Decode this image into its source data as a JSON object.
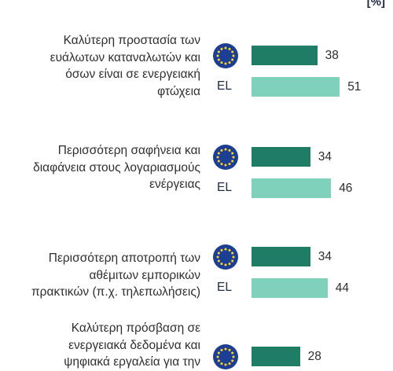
{
  "unit_label": "[%]",
  "colors": {
    "eu": "#1e7d64",
    "el": "#7fd1bc",
    "flag": "#1d3f93",
    "star": "#ffd520"
  },
  "chart_data": {
    "type": "bar",
    "orientation": "horizontal",
    "categories": [
      [
        "Καλύτερη προστασία των",
        "ευάλωτων καταναλωτών και",
        "όσων είναι σε ενεργειακή",
        "φτώχεια"
      ],
      [
        "Περισσότερη σαφήνεια και",
        "διαφάνεια στους λογαριασμούς",
        "ενέργειας"
      ],
      [
        "Περισσότερη αποτροπή των",
        "αθέμιτων εμπορικών",
        "πρακτικών (π.χ. τηλεπωλήσεις)"
      ],
      [
        "Καλύτερη πρόσβαση σε",
        "ενεργειακά δεδομένα και",
        "ψηφιακά εργαλεία για την"
      ]
    ],
    "series": [
      {
        "region": "EU",
        "label": "",
        "icon": "eu-flag-icon",
        "color": "#1e7d64",
        "values": [
          38,
          34,
          34,
          28
        ]
      },
      {
        "region": "EL",
        "label": "EL",
        "color": "#7fd1bc",
        "values": [
          51,
          46,
          44,
          null
        ]
      }
    ]
  }
}
